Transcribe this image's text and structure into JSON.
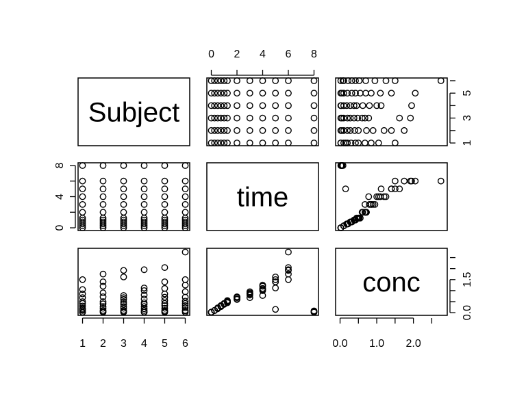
{
  "chart_data": {
    "type": "scatter",
    "variables": [
      "Subject",
      "time",
      "conc"
    ],
    "axis_ticks": {
      "Subject": [
        "1",
        "2",
        "3",
        "4",
        "5",
        "6"
      ],
      "Subject_right": [
        "1",
        "3",
        "5"
      ],
      "time": [
        "0",
        "2",
        "4",
        "6",
        "8"
      ],
      "time_left": [
        "0",
        "4",
        "8"
      ],
      "conc": [
        "0.0",
        "1.0",
        "2.0"
      ],
      "conc_right": [
        "0.0",
        "1.5"
      ]
    },
    "ranges": {
      "Subject": [
        1,
        6
      ],
      "time": [
        0,
        8
      ],
      "conc": [
        0,
        2.8
      ]
    },
    "times": [
      0,
      0.25,
      0.5,
      0.75,
      1,
      1.25,
      2,
      3,
      4,
      5,
      6,
      8
    ],
    "conc_by_subject": [
      [
        1,
        [
          0.02,
          0.1,
          0.2,
          0.3,
          0.42,
          0.5,
          0.68,
          0.85,
          1.05,
          0.15,
          1.5,
          0.02
        ]
      ],
      [
        2,
        [
          0.02,
          0.1,
          0.2,
          0.28,
          0.4,
          0.5,
          0.72,
          0.9,
          1.2,
          1.4,
          1.75,
          0.05
        ]
      ],
      [
        3,
        [
          0.02,
          0.1,
          0.2,
          0.28,
          0.38,
          0.48,
          0.6,
          0.68,
          0.78,
          1.62,
          1.92,
          0.05
        ]
      ],
      [
        4,
        [
          0.02,
          0.1,
          0.18,
          0.28,
          0.38,
          0.45,
          0.62,
          0.8,
          1.0,
          1.12,
          1.95,
          0.03
        ]
      ],
      [
        5,
        [
          0.02,
          0.1,
          0.2,
          0.32,
          0.42,
          0.55,
          0.7,
          0.85,
          1.1,
          1.4,
          2.05,
          0.05
        ]
      ],
      [
        6,
        [
          0.02,
          0.1,
          0.22,
          0.32,
          0.42,
          0.52,
          0.7,
          0.95,
          1.25,
          1.5,
          2.75,
          0.08
        ]
      ]
    ]
  }
}
